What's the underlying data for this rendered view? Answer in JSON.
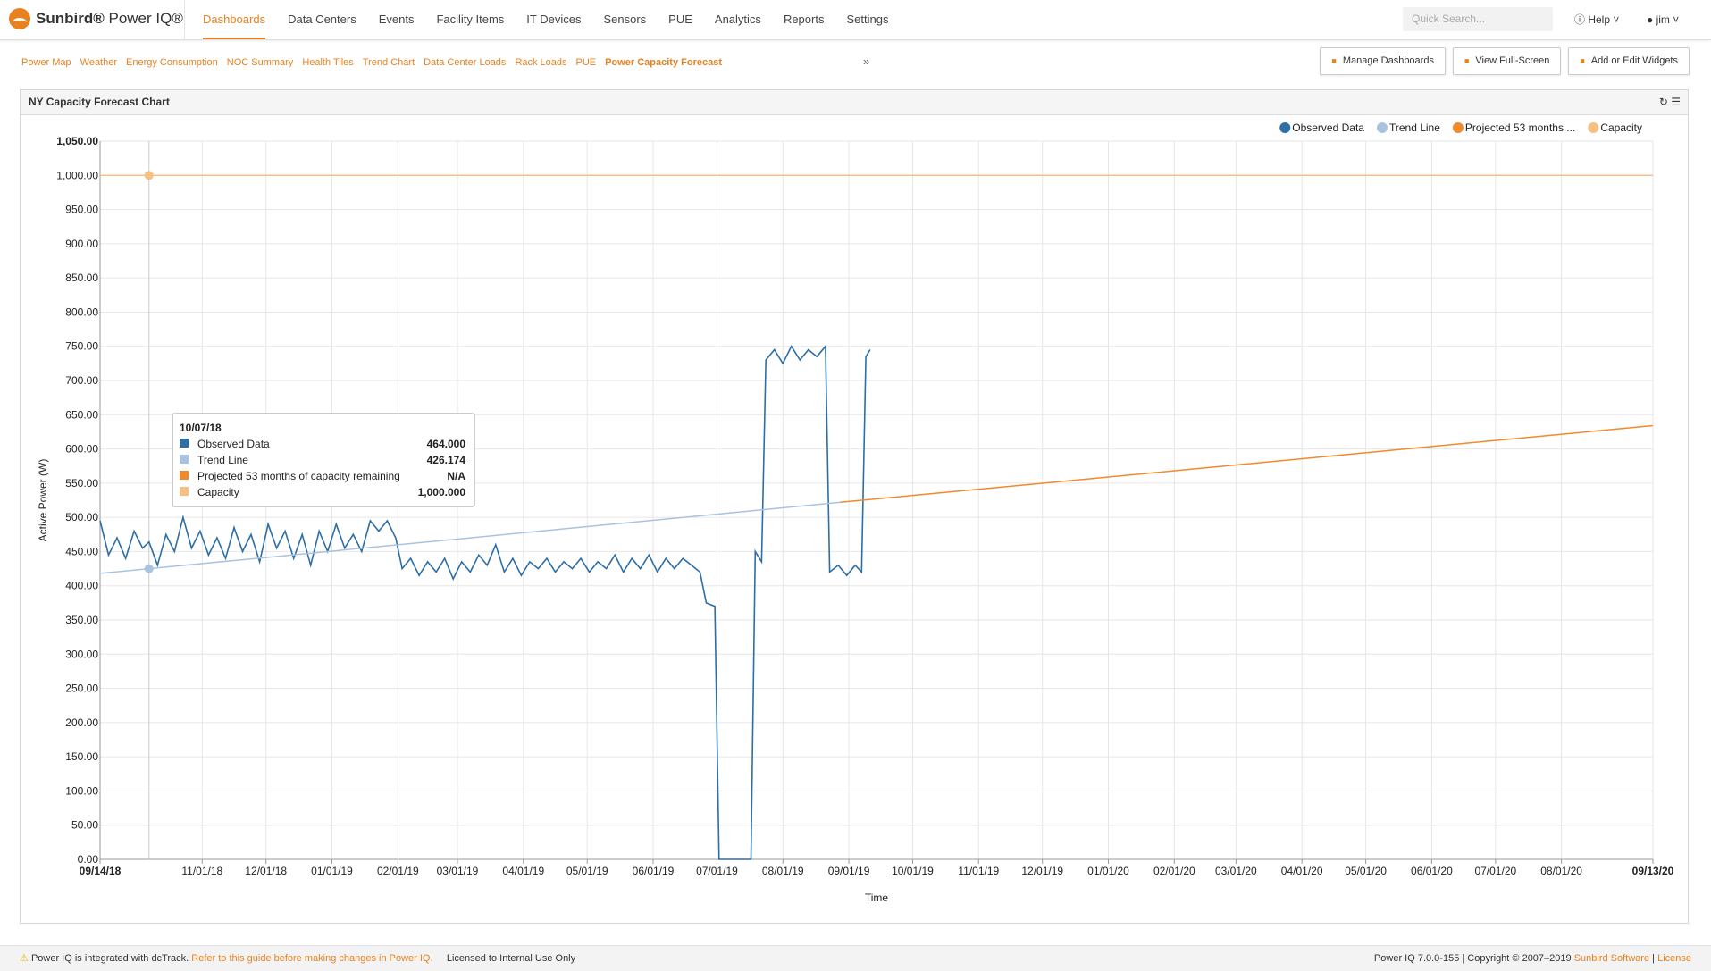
{
  "header": {
    "brand": "Sunbird®",
    "product": "Power IQ®",
    "nav": [
      "Dashboards",
      "Data Centers",
      "Events",
      "Facility Items",
      "IT Devices",
      "Sensors",
      "PUE",
      "Analytics",
      "Reports",
      "Settings"
    ],
    "search": "Quick Search...",
    "help": "Help",
    "user": "jim"
  },
  "tabs": [
    "Power Map",
    "Weather",
    "Energy Consumption",
    "NOC Summary",
    "Health Tiles",
    "Trend Chart",
    "Data Center Loads",
    "Rack Loads",
    "PUE",
    "Power Capacity Forecast"
  ],
  "buttons": [
    "Manage Dashboards",
    "View Full-Screen",
    "Add or Edit Widgets"
  ],
  "widget": {
    "title": "NY Capacity Forecast Chart"
  },
  "chart_data": {
    "type": "line",
    "x_label": "Time",
    "y_label": "Active Power (W)",
    "xlim": [
      "09/14/18",
      "09/13/20"
    ],
    "ylim": [
      0,
      1050
    ],
    "xticks": [
      "09/14/18",
      "11/01/18",
      "12/01/18",
      "01/01/19",
      "02/01/19",
      "03/01/19",
      "04/01/19",
      "05/01/19",
      "06/01/19",
      "07/01/19",
      "08/01/19",
      "09/01/19",
      "10/01/19",
      "11/01/19",
      "12/01/19",
      "01/01/20",
      "02/01/20",
      "03/01/20",
      "04/01/20",
      "05/01/20",
      "06/01/20",
      "07/01/20",
      "08/01/20",
      "09/13/20"
    ],
    "yticks": [
      {
        "value": 0,
        "label": "0.00"
      },
      {
        "value": 50,
        "label": "50.00"
      },
      {
        "value": 100,
        "label": "100.00"
      },
      {
        "value": 150,
        "label": "150.00"
      },
      {
        "value": 200,
        "label": "200.00"
      },
      {
        "value": 250,
        "label": "250.00"
      },
      {
        "value": 300,
        "label": "300.00"
      },
      {
        "value": 350,
        "label": "350.00"
      },
      {
        "value": 400,
        "label": "400.00"
      },
      {
        "value": 450,
        "label": "450.00"
      },
      {
        "value": 500,
        "label": "500.00"
      },
      {
        "value": 550,
        "label": "550.00"
      },
      {
        "value": 600,
        "label": "600.00"
      },
      {
        "value": 650,
        "label": "650.00"
      },
      {
        "value": 700,
        "label": "700.00"
      },
      {
        "value": 750,
        "label": "750.00"
      },
      {
        "value": 800,
        "label": "800.00"
      },
      {
        "value": 850,
        "label": "850.00"
      },
      {
        "value": 900,
        "label": "900.00"
      },
      {
        "value": 950,
        "label": "950.00"
      },
      {
        "value": 1000,
        "label": "1,000.00"
      },
      {
        "value": 1050,
        "label": "1,050.00"
      }
    ],
    "grid": true,
    "legend": "top-right",
    "series": [
      {
        "name": "Observed Data",
        "color": "#2d6ea5",
        "x": [
          "09/14/18",
          "09/18/18",
          "09/22/18",
          "09/26/18",
          "09/30/18",
          "10/04/18",
          "10/07/18",
          "10/11/18",
          "10/15/18",
          "10/19/18",
          "10/23/18",
          "10/27/18",
          "10/31/18",
          "11/04/18",
          "11/08/18",
          "11/12/18",
          "11/16/18",
          "11/20/18",
          "11/24/18",
          "11/28/18",
          "12/02/18",
          "12/06/18",
          "12/10/18",
          "12/14/18",
          "12/18/18",
          "12/22/18",
          "12/26/18",
          "12/30/18",
          "01/03/19",
          "01/07/19",
          "01/11/19",
          "01/15/19",
          "01/19/19",
          "01/23/19",
          "01/27/19",
          "01/31/19",
          "02/03/19",
          "02/07/19",
          "02/11/19",
          "02/15/19",
          "02/19/19",
          "02/23/19",
          "02/27/19",
          "03/03/19",
          "03/07/19",
          "03/11/19",
          "03/15/19",
          "03/19/19",
          "03/23/19",
          "03/27/19",
          "03/31/19",
          "04/04/19",
          "04/08/19",
          "04/12/19",
          "04/16/19",
          "04/20/19",
          "04/24/19",
          "04/28/19",
          "05/02/19",
          "05/06/19",
          "05/10/19",
          "05/14/19",
          "05/18/19",
          "05/22/19",
          "05/26/19",
          "05/30/19",
          "06/03/19",
          "06/07/19",
          "06/11/19",
          "06/15/19",
          "06/19/19",
          "06/23/19",
          "06/26/19",
          "06/30/19",
          "07/02/19",
          "07/10/19",
          "07/17/19",
          "07/19/19",
          "07/22/19",
          "07/24/19",
          "07/28/19",
          "08/01/19",
          "08/05/19",
          "08/09/19",
          "08/13/19",
          "08/17/19",
          "08/21/19",
          "08/23/19",
          "08/27/19",
          "08/31/19",
          "09/04/19",
          "09/07/19",
          "09/09/19",
          "09/11/19"
        ],
        "values": [
          495,
          445,
          470,
          440,
          480,
          455,
          464,
          430,
          475,
          450,
          500,
          455,
          480,
          445,
          470,
          440,
          485,
          450,
          475,
          435,
          490,
          455,
          480,
          440,
          475,
          430,
          480,
          450,
          490,
          455,
          475,
          450,
          495,
          480,
          495,
          470,
          425,
          440,
          415,
          435,
          420,
          440,
          410,
          435,
          420,
          445,
          430,
          460,
          420,
          440,
          415,
          435,
          425,
          440,
          420,
          435,
          425,
          440,
          420,
          435,
          425,
          445,
          420,
          440,
          425,
          445,
          420,
          440,
          425,
          440,
          430,
          420,
          375,
          370,
          0,
          0,
          0,
          450,
          435,
          730,
          745,
          725,
          750,
          730,
          745,
          735,
          750,
          420,
          430,
          415,
          430,
          420,
          735,
          745
        ]
      },
      {
        "name": "Trend Line",
        "color": "#a9c3df",
        "x": [
          "09/14/18",
          "08/28/19"
        ],
        "values": [
          418,
          522
        ]
      },
      {
        "name": "Projected 53 months ...",
        "color": "#f08a2c",
        "x": [
          "08/28/19",
          "09/13/20"
        ],
        "values": [
          522,
          634
        ]
      },
      {
        "name": "Capacity",
        "color": "#f6c081",
        "x": [
          "09/14/18",
          "09/13/20"
        ],
        "values": [
          1000,
          1000
        ]
      }
    ],
    "tooltip": {
      "x": "10/07/18",
      "rows": [
        {
          "name": "Observed Data",
          "text": "464.000"
        },
        {
          "name": "Trend Line",
          "text": "426.174"
        },
        {
          "name": "Projected 53 months of capacity remaining",
          "text": "N/A"
        },
        {
          "name": "Capacity",
          "text": "1,000.000"
        }
      ]
    }
  },
  "footer": {
    "notice": "Power IQ is integrated with dcTrack.",
    "link": "Refer to this guide before making changes in Power IQ.",
    "license": "Licensed to Internal Use Only",
    "version": "Power IQ 7.0.0-155 | Copyright © 2007–2019",
    "company": "Sunbird Software",
    "license_link": "License"
  }
}
